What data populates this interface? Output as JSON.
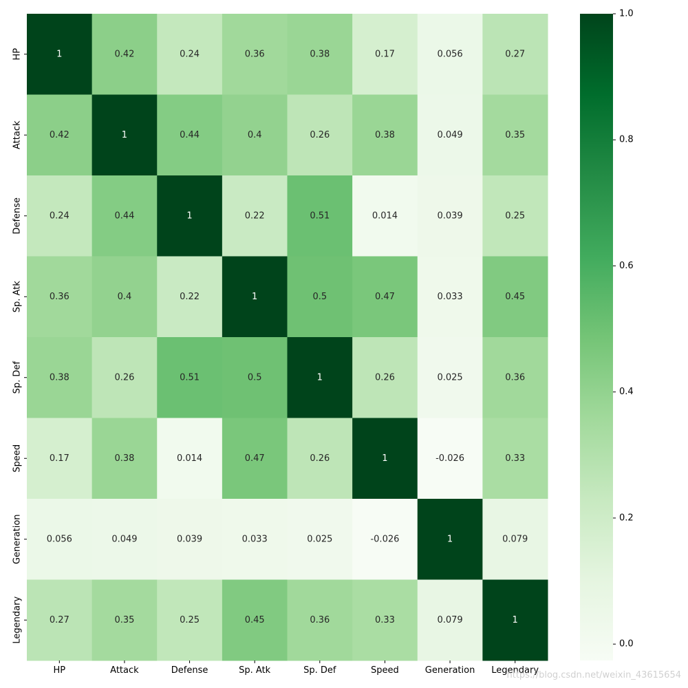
{
  "chart_data": {
    "type": "heatmap",
    "title": "",
    "xlabel": "",
    "ylabel": "",
    "x_labels": [
      "HP",
      "Attack",
      "Defense",
      "Sp. Atk",
      "Sp. Def",
      "Speed",
      "Generation",
      "Legendary"
    ],
    "y_labels": [
      "HP",
      "Attack",
      "Defense",
      "Sp. Atk",
      "Sp. Def",
      "Speed",
      "Generation",
      "Legendary"
    ],
    "values": [
      [
        1,
        0.42,
        0.24,
        0.36,
        0.38,
        0.17,
        0.056,
        0.27
      ],
      [
        0.42,
        1,
        0.44,
        0.4,
        0.26,
        0.38,
        0.049,
        0.35
      ],
      [
        0.24,
        0.44,
        1,
        0.22,
        0.51,
        0.014,
        0.039,
        0.25
      ],
      [
        0.36,
        0.4,
        0.22,
        1,
        0.5,
        0.47,
        0.033,
        0.45
      ],
      [
        0.38,
        0.26,
        0.51,
        0.5,
        1,
        0.26,
        0.025,
        0.36
      ],
      [
        0.17,
        0.38,
        0.014,
        0.47,
        0.26,
        1,
        -0.026,
        0.33
      ],
      [
        0.056,
        0.049,
        0.039,
        0.033,
        0.025,
        -0.026,
        1,
        0.079
      ],
      [
        0.27,
        0.35,
        0.25,
        0.45,
        0.36,
        0.33,
        0.079,
        1
      ]
    ],
    "value_range": [
      -0.026,
      1
    ],
    "annotated": true,
    "colormap": "Greens",
    "colorbar": {
      "ticks": [
        0.0,
        0.2,
        0.4,
        0.6,
        0.8,
        1.0
      ],
      "tick_labels": [
        "0.0",
        "0.2",
        "0.4",
        "0.6",
        "0.8",
        "1.0"
      ],
      "placement": "right"
    },
    "colormap_stops": [
      "#f7fcf5",
      "#e5f5e0",
      "#c7e9c0",
      "#a1d99b",
      "#74c476",
      "#41ab5d",
      "#238b45",
      "#006d2c",
      "#00441b"
    ],
    "annotation_colors": {
      "dark_text": "#262626",
      "light_text": "#ffffff"
    },
    "grid": false
  },
  "watermark": "https://blog.csdn.net/weixin_43615654"
}
